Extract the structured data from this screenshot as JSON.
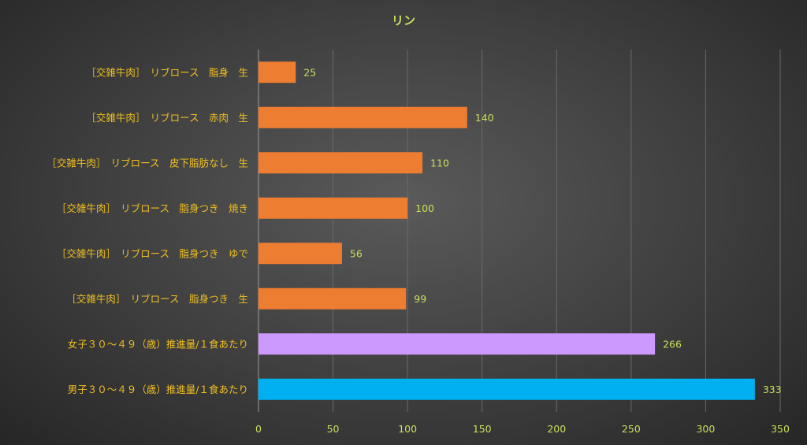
{
  "chart_data": {
    "type": "bar",
    "orientation": "horizontal",
    "title": "リン",
    "categories": [
      "［交雑牛肉］　リブロース　脂身　生",
      "［交雑牛肉］　リブロース　赤肉　生",
      "［交雑牛肉］　リブロース　皮下脂肪なし　生",
      "［交雑牛肉］　リブロース　脂身つき　焼き",
      "［交雑牛肉］　リブロース　脂身つき　ゆで",
      "［交雑牛肉］　リブロース　脂身つき　生",
      "女子３０～４９（歳）推進量/１食あたり",
      "男子３０～４９（歳）推進量/１食あたり"
    ],
    "values": [
      25,
      140,
      110,
      100,
      56,
      99,
      266,
      333
    ],
    "colors": [
      "#ed7d31",
      "#ed7d31",
      "#ed7d31",
      "#ed7d31",
      "#ed7d31",
      "#ed7d31",
      "#cc99ff",
      "#00b0f0"
    ],
    "xlim": [
      0,
      350
    ],
    "xticks": [
      0,
      50,
      100,
      150,
      200,
      250,
      300,
      350
    ],
    "grid": true,
    "legend": "none",
    "xlabel": "",
    "ylabel": ""
  }
}
